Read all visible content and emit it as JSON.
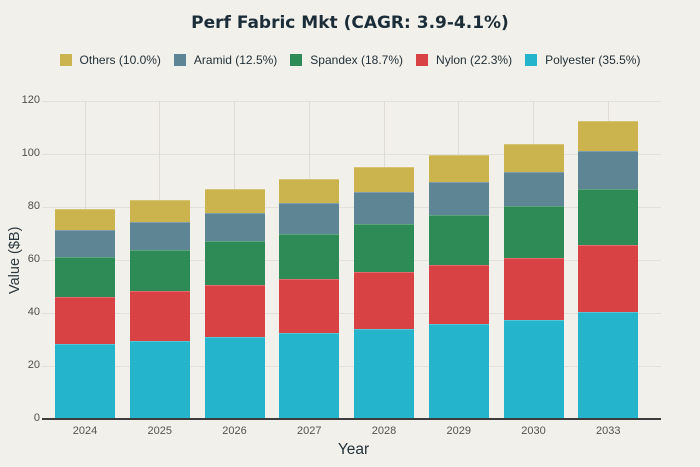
{
  "title": "Perf Fabric Mkt (CAGR: 3.9-4.1%)",
  "colors": {
    "background": "#f2f0ea",
    "title_text": "#1b2d38",
    "legend_text": "#1f2e37",
    "tick_text": "#4f4e49",
    "axis_title_text": "#2b3840",
    "gridline": "#e2e0d8",
    "axis_line": "#3d3d3d",
    "polyester": "#24b4cc",
    "nylon": "#d94244",
    "spandex": "#2f8b56",
    "aramid": "#5d8593",
    "others": "#cbb44e"
  },
  "chart_data": {
    "type": "bar",
    "stacked": true,
    "title": "Perf Fabric Mkt (CAGR: 3.9-4.1%)",
    "xlabel": "Year",
    "ylabel": "Value ($B)",
    "categories": [
      "2024",
      "2025",
      "2026",
      "2027",
      "2028",
      "2029",
      "2030",
      "2033"
    ],
    "series": [
      {
        "key": "polyester",
        "name": "Polyester (35.5%)",
        "color": "#24b4cc",
        "values": [
          28.4,
          29.6,
          31.1,
          32.5,
          34.1,
          35.7,
          37.3,
          40.3
        ]
      },
      {
        "key": "nylon",
        "name": "Nylon (22.3%)",
        "color": "#d94244",
        "values": [
          17.8,
          18.6,
          19.5,
          20.4,
          21.4,
          22.4,
          23.4,
          25.3
        ]
      },
      {
        "key": "spandex",
        "name": "Spandex (18.7%)",
        "color": "#2f8b56",
        "values": [
          15.0,
          15.6,
          16.4,
          17.1,
          18.0,
          18.8,
          19.6,
          21.2
        ]
      },
      {
        "key": "aramid",
        "name": "Aramid (12.5%)",
        "color": "#5d8593",
        "values": [
          10.0,
          10.4,
          10.9,
          11.4,
          12.0,
          12.6,
          13.1,
          14.2
        ]
      },
      {
        "key": "others",
        "name": "Others (10.0%)",
        "color": "#cbb44e",
        "values": [
          8.0,
          8.4,
          8.8,
          9.2,
          9.6,
          10.1,
          10.5,
          11.4
        ]
      }
    ],
    "bar_totals_approx": [
      80,
      83.5,
      87.5,
      91.5,
      96,
      100.5,
      105,
      113.5
    ],
    "yticks": [
      0,
      20,
      40,
      60,
      80,
      100,
      120
    ],
    "ylim": [
      0,
      120
    ],
    "grid": true,
    "legend_position": "top",
    "legend_order": "reversed-of-stack"
  }
}
